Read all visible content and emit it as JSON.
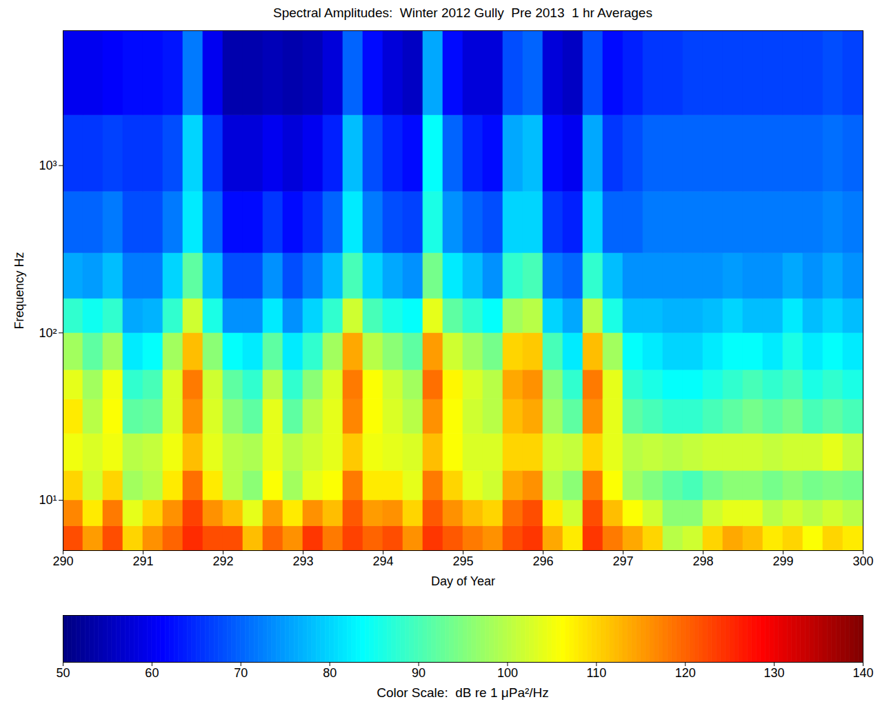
{
  "chart_data": {
    "type": "heatmap",
    "title": "Spectral Amplitudes:  Winter 2012 Gully  Pre 2013  1 hr Averages",
    "xlabel": "Day of Year",
    "ylabel": "Frequency Hz",
    "xlim": [
      290,
      300
    ],
    "xticks": [
      290,
      291,
      292,
      293,
      294,
      295,
      296,
      297,
      298,
      299,
      300
    ],
    "ylim": [
      5,
      6400
    ],
    "yticks": [
      {
        "value": 10,
        "label": "10¹"
      },
      {
        "value": 100,
        "label": "10²"
      },
      {
        "value": 1000,
        "label": "10³"
      }
    ],
    "log": "y",
    "x_bins": [
      290,
      290.25,
      290.5,
      290.75,
      291,
      291.25,
      291.5,
      291.75,
      292,
      292.25,
      292.5,
      292.75,
      293,
      293.25,
      293.5,
      293.75,
      294,
      294.25,
      294.5,
      294.75,
      295,
      295.25,
      295.5,
      295.75,
      296,
      296.25,
      296.5,
      296.75,
      297,
      297.25,
      297.5,
      297.75,
      298,
      298.25,
      298.5,
      298.75,
      299,
      299.25,
      299.5,
      299.75,
      300
    ],
    "y_bins": [
      5,
      7,
      10,
      15,
      25,
      40,
      60,
      100,
      160,
      300,
      700,
      2000,
      6400
    ],
    "values": [
      [
        122,
        117,
        110,
        105,
        108,
        104,
        98,
        88,
        76,
        70,
        66,
        60
      ],
      [
        115,
        108,
        102,
        103,
        100,
        98,
        92,
        85,
        75,
        70,
        66,
        60
      ],
      [
        122,
        118,
        110,
        105,
        106,
        105,
        98,
        88,
        78,
        72,
        67,
        61
      ],
      [
        110,
        104,
        98,
        100,
        92,
        88,
        82,
        76,
        72,
        68,
        66,
        62
      ],
      [
        116,
        110,
        100,
        101,
        93,
        90,
        84,
        77,
        72,
        68,
        66,
        62
      ],
      [
        120,
        116,
        108,
        105,
        103,
        103,
        98,
        88,
        80,
        72,
        68,
        63
      ],
      [
        125,
        123,
        119,
        112,
        116,
        118,
        112,
        102,
        92,
        82,
        80,
        72
      ],
      [
        122,
        116,
        108,
        104,
        103,
        102,
        96,
        86,
        78,
        70,
        66,
        60
      ],
      [
        122,
        112,
        100,
        100,
        96,
        92,
        84,
        74,
        68,
        62,
        58,
        54
      ],
      [
        112,
        104,
        96,
        99,
        92,
        88,
        82,
        74,
        68,
        62,
        58,
        54
      ],
      [
        120,
        115,
        106,
        104,
        104,
        100,
        92,
        82,
        74,
        66,
        60,
        55
      ],
      [
        116,
        108,
        98,
        100,
        92,
        88,
        82,
        74,
        68,
        62,
        58,
        54
      ],
      [
        124,
        116,
        104,
        102,
        100,
        96,
        88,
        80,
        72,
        65,
        60,
        55
      ],
      [
        118,
        112,
        106,
        104,
        104,
        103,
        98,
        88,
        78,
        70,
        64,
        58
      ],
      [
        123,
        121,
        118,
        111,
        117,
        118,
        114,
        102,
        90,
        82,
        78,
        70
      ],
      [
        120,
        115,
        108,
        105,
        106,
        106,
        100,
        90,
        80,
        72,
        68,
        62
      ],
      [
        122,
        116,
        108,
        104,
        103,
        102,
        96,
        86,
        76,
        68,
        64,
        58
      ],
      [
        116,
        110,
        104,
        103,
        100,
        98,
        92,
        84,
        74,
        67,
        62,
        56
      ],
      [
        124,
        121,
        118,
        112,
        116,
        119,
        115,
        104,
        94,
        86,
        84,
        76
      ],
      [
        121,
        116,
        110,
        106,
        106,
        107,
        102,
        92,
        82,
        74,
        70,
        62
      ],
      [
        118,
        112,
        104,
        103,
        102,
        103,
        98,
        88,
        78,
        70,
        64,
        58
      ],
      [
        116,
        110,
        102,
        103,
        100,
        100,
        94,
        84,
        74,
        68,
        62,
        58
      ],
      [
        122,
        119,
        114,
        110,
        112,
        114,
        110,
        98,
        88,
        80,
        76,
        68
      ],
      [
        124,
        122,
        116,
        110,
        114,
        116,
        111,
        100,
        90,
        80,
        78,
        70
      ],
      [
        114,
        108,
        100,
        102,
        98,
        96,
        90,
        80,
        72,
        66,
        62,
        58
      ],
      [
        108,
        102,
        96,
        101,
        92,
        88,
        82,
        76,
        70,
        64,
        60,
        56
      ],
      [
        124,
        122,
        118,
        110,
        116,
        118,
        112,
        100,
        88,
        80,
        76,
        68
      ],
      [
        118,
        112,
        106,
        104,
        104,
        104,
        98,
        86,
        78,
        70,
        66,
        62
      ],
      [
        114,
        106,
        98,
        100,
        92,
        88,
        84,
        78,
        74,
        70,
        68,
        64
      ],
      [
        110,
        102,
        95,
        101,
        90,
        86,
        82,
        78,
        74,
        72,
        70,
        66
      ],
      [
        100,
        96,
        92,
        100,
        88,
        84,
        80,
        77,
        74,
        72,
        70,
        66
      ],
      [
        102,
        96,
        90,
        101,
        88,
        84,
        80,
        77,
        74,
        72,
        70,
        67
      ],
      [
        110,
        102,
        94,
        102,
        90,
        86,
        82,
        78,
        74,
        72,
        70,
        67
      ],
      [
        114,
        104,
        96,
        102,
        92,
        88,
        84,
        80,
        75,
        72,
        70,
        67
      ],
      [
        112,
        104,
        96,
        102,
        94,
        90,
        84,
        78,
        74,
        72,
        70,
        67
      ],
      [
        108,
        100,
        94,
        101,
        92,
        88,
        82,
        78,
        74,
        72,
        70,
        67
      ],
      [
        110,
        102,
        96,
        102,
        94,
        90,
        86,
        82,
        76,
        72,
        70,
        67
      ],
      [
        106,
        100,
        94,
        102,
        90,
        86,
        82,
        78,
        74,
        72,
        70,
        67
      ],
      [
        110,
        102,
        95,
        104,
        92,
        88,
        84,
        80,
        76,
        73,
        71,
        68
      ],
      [
        108,
        100,
        94,
        101,
        90,
        86,
        82,
        78,
        74,
        72,
        70,
        67
      ]
    ],
    "colorbar": {
      "label": "Color Scale:  dB re 1 μPa²/Hz",
      "range": [
        50,
        140
      ],
      "ticks": [
        50,
        60,
        70,
        80,
        90,
        100,
        110,
        120,
        130,
        140
      ]
    }
  }
}
